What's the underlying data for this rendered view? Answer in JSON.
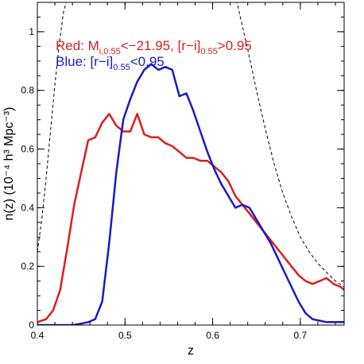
{
  "chart_data": {
    "type": "line",
    "xlabel": "z",
    "ylabel": "n(z)  (10⁻⁴ h³ Mpc⁻³)",
    "xlim": [
      0.4,
      0.75
    ],
    "ylim": [
      0,
      1.1
    ],
    "x_ticks": [
      0.4,
      0.5,
      0.6,
      0.7
    ],
    "x_tick_labels": [
      "0.4",
      "0.5",
      "0.6",
      "0.7"
    ],
    "y_ticks": [
      0,
      0.2,
      0.4,
      0.6,
      0.8,
      1.0
    ],
    "y_tick_labels": [
      "0",
      "0.2",
      "0.4",
      "0.6",
      "0.8",
      "1"
    ],
    "legend": {
      "red": {
        "prefix": "Red: M",
        "sub1": "i,0.55",
        "mid": "<−21.95, [r−i]",
        "sub2": "0.55",
        "suffix": ">0.95",
        "color": "#dc1e1e"
      },
      "blue": {
        "prefix": "Blue: [r−i]",
        "sub1": "0.55",
        "suffix": "<0.95",
        "color": "#1a1ac8"
      }
    },
    "series": [
      {
        "color": "#dc1e1e",
        "style": "solid",
        "x": [
          0.4,
          0.41,
          0.418,
          0.426,
          0.434,
          0.442,
          0.45,
          0.458,
          0.466,
          0.474,
          0.482,
          0.49,
          0.498,
          0.506,
          0.514,
          0.522,
          0.53,
          0.538,
          0.546,
          0.554,
          0.562,
          0.57,
          0.578,
          0.586,
          0.594,
          0.602,
          0.61,
          0.618,
          0.626,
          0.634,
          0.642,
          0.65,
          0.658,
          0.666,
          0.674,
          0.682,
          0.69,
          0.698,
          0.706,
          0.714,
          0.722,
          0.73,
          0.738,
          0.746,
          0.75
        ],
        "y": [
          0.01,
          0.02,
          0.05,
          0.12,
          0.26,
          0.41,
          0.52,
          0.63,
          0.64,
          0.69,
          0.72,
          0.68,
          0.66,
          0.66,
          0.72,
          0.65,
          0.64,
          0.64,
          0.62,
          0.61,
          0.59,
          0.57,
          0.57,
          0.56,
          0.56,
          0.54,
          0.52,
          0.49,
          0.44,
          0.41,
          0.38,
          0.35,
          0.32,
          0.29,
          0.26,
          0.23,
          0.2,
          0.17,
          0.15,
          0.14,
          0.15,
          0.16,
          0.14,
          0.13,
          0.12
        ]
      },
      {
        "color": "#1a1ac8",
        "style": "solid",
        "x": [
          0.4,
          0.42,
          0.44,
          0.45,
          0.458,
          0.466,
          0.474,
          0.482,
          0.49,
          0.498,
          0.506,
          0.514,
          0.522,
          0.53,
          0.538,
          0.546,
          0.554,
          0.562,
          0.57,
          0.578,
          0.586,
          0.594,
          0.602,
          0.61,
          0.618,
          0.626,
          0.634,
          0.642,
          0.65,
          0.658,
          0.666,
          0.674,
          0.682,
          0.69,
          0.698,
          0.706,
          0.714,
          0.722,
          0.73,
          0.738,
          0.746,
          0.75
        ],
        "y": [
          0.0,
          0.0,
          0.0,
          0.005,
          0.01,
          0.02,
          0.08,
          0.28,
          0.52,
          0.7,
          0.77,
          0.83,
          0.87,
          0.89,
          0.87,
          0.88,
          0.87,
          0.78,
          0.79,
          0.73,
          0.66,
          0.59,
          0.53,
          0.48,
          0.44,
          0.4,
          0.41,
          0.4,
          0.36,
          0.32,
          0.28,
          0.23,
          0.18,
          0.13,
          0.08,
          0.04,
          0.02,
          0.015,
          0.01,
          0.01,
          0.01,
          0.01
        ]
      },
      {
        "color": "#000000",
        "style": "dashed",
        "x": [
          0.4,
          0.405,
          0.41,
          0.415,
          0.42,
          0.425,
          0.43,
          0.435,
          0.44
        ],
        "y": [
          0.25,
          0.36,
          0.5,
          0.66,
          0.82,
          0.96,
          1.07,
          1.12,
          1.2
        ]
      },
      {
        "color": "#000000",
        "style": "dashed",
        "x": [
          0.62,
          0.63,
          0.64,
          0.65,
          0.66,
          0.67,
          0.68,
          0.69,
          0.7,
          0.71,
          0.72,
          0.73,
          0.74,
          0.75
        ],
        "y": [
          1.2,
          1.07,
          0.94,
          0.8,
          0.67,
          0.55,
          0.45,
          0.37,
          0.3,
          0.25,
          0.21,
          0.18,
          0.15,
          0.13
        ]
      }
    ]
  }
}
